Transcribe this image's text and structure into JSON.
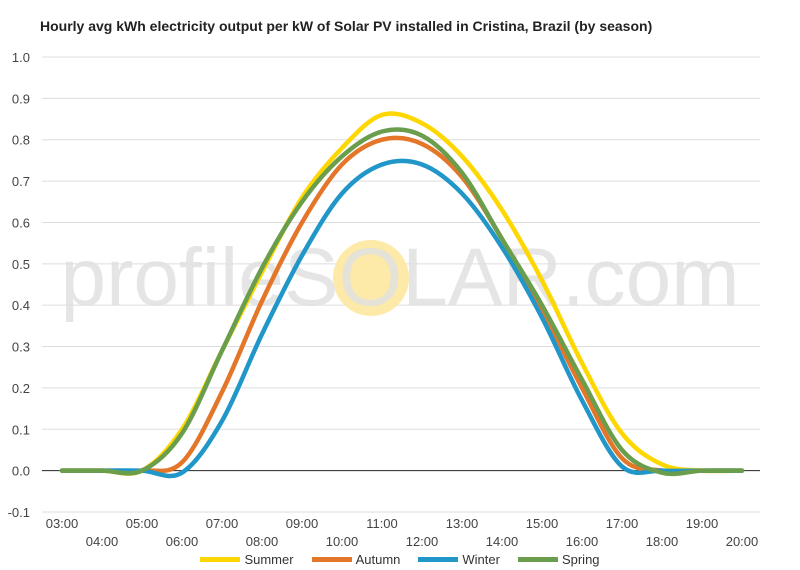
{
  "watermark": "profileSOLAR.com",
  "colors": {
    "sun": "#FDE9A8",
    "watermark": "#E1E1E1",
    "grid": "#DDDDDD",
    "zero_line": "#222222",
    "tick_text": "#444444"
  },
  "chart_data": {
    "type": "line",
    "title": "Hourly avg kWh electricity output per kW of Solar PV installed in Cristina, Brazil (by season)",
    "xlabel": "",
    "ylabel": "",
    "ylim": [
      -0.1,
      1.0
    ],
    "yticks": [
      "1.0",
      "0.9",
      "0.8",
      "0.7",
      "0.6",
      "0.5",
      "0.4",
      "0.3",
      "0.2",
      "0.1",
      "0.0",
      "-0.1"
    ],
    "x": [
      "03:00",
      "04:00",
      "05:00",
      "06:00",
      "07:00",
      "08:00",
      "09:00",
      "10:00",
      "11:00",
      "12:00",
      "13:00",
      "14:00",
      "15:00",
      "16:00",
      "17:00",
      "18:00",
      "19:00",
      "20:00"
    ],
    "legend_position": "bottom",
    "grid": true,
    "series": [
      {
        "name": "Summer",
        "color": "#FFD700",
        "values": [
          0,
          0,
          0.0,
          0.1,
          0.29,
          0.48,
          0.66,
          0.78,
          0.86,
          0.84,
          0.76,
          0.63,
          0.46,
          0.26,
          0.09,
          0.015,
          0,
          0
        ]
      },
      {
        "name": "Autumn",
        "color": "#E4762A",
        "values": [
          0,
          0,
          0,
          0.02,
          0.19,
          0.41,
          0.6,
          0.74,
          0.8,
          0.79,
          0.71,
          0.56,
          0.39,
          0.2,
          0.03,
          0,
          0,
          0
        ]
      },
      {
        "name": "Winter",
        "color": "#2196C8",
        "values": [
          0,
          0,
          0,
          -0.005,
          0.12,
          0.33,
          0.52,
          0.67,
          0.74,
          0.74,
          0.67,
          0.54,
          0.37,
          0.17,
          0.01,
          0,
          0,
          0
        ]
      },
      {
        "name": "Spring",
        "color": "#6A9E4C",
        "values": [
          0,
          0,
          0.0,
          0.09,
          0.29,
          0.49,
          0.65,
          0.76,
          0.82,
          0.81,
          0.72,
          0.56,
          0.4,
          0.22,
          0.05,
          -0.005,
          0,
          0
        ]
      }
    ]
  }
}
